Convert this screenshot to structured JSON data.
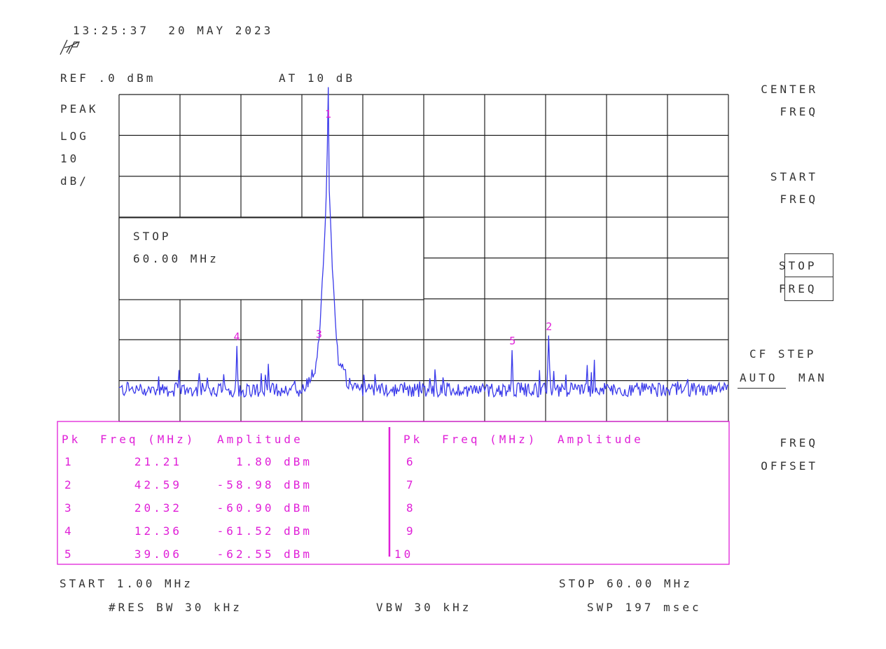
{
  "header": {
    "timestamp": "13:25:37  20 MAY 2023",
    "logo": "hp",
    "ref_level": "REF .0 dBm",
    "attenuation": "AT 10 dB"
  },
  "left_annotations": {
    "detector": "PEAK",
    "scale_type": "LOG",
    "scale_value": "10",
    "scale_unit": "dB/"
  },
  "active_function": {
    "label": "STOP",
    "value": "60.00 MHz"
  },
  "softkeys": {
    "center_freq": [
      "CENTER",
      "FREQ"
    ],
    "start_freq": [
      "START",
      "FREQ"
    ],
    "stop_freq": [
      "STOP",
      "FREQ"
    ],
    "cf_step": "CF STEP",
    "cf_step_auto": "AUTO",
    "cf_step_man": "MAN",
    "freq_offset": [
      "FREQ",
      "OFFSET"
    ]
  },
  "peak_table": {
    "headers": [
      "Pk",
      "Freq (MHz)",
      "Amplitude"
    ],
    "rows": [
      {
        "pk": "1",
        "freq": "21.21",
        "amp": "1.80 dBm"
      },
      {
        "pk": "2",
        "freq": "42.59",
        "amp": "-58.98 dBm"
      },
      {
        "pk": "3",
        "freq": "20.32",
        "amp": "-60.90 dBm"
      },
      {
        "pk": "4",
        "freq": "12.36",
        "amp": "-61.52 dBm"
      },
      {
        "pk": "5",
        "freq": "39.06",
        "amp": "-62.55 dBm"
      }
    ],
    "right_rows": [
      "6",
      "7",
      "8",
      "9",
      "10"
    ]
  },
  "footer": {
    "start": "START 1.00 MHz",
    "stop": "STOP 60.00 MHz",
    "rbw": "#RES BW 30 kHz",
    "vbw": "VBW 30 kHz",
    "sweep": "SWP 197 msec"
  },
  "colors": {
    "trace": "#3a3aea",
    "marker": "#e020d8",
    "graticule": "#222222",
    "text": "#333333"
  },
  "chart_data": {
    "type": "line",
    "xlim": [
      1.0,
      60.0
    ],
    "ylim": [
      -80,
      0
    ],
    "x_unit": "MHz",
    "y_unit": "dBm",
    "x_divisions": 10,
    "y_divisions": 8,
    "grid": true,
    "noise_floor": -73,
    "markers": [
      {
        "label": "1",
        "freq": 21.21,
        "amp": 1.8
      },
      {
        "label": "2",
        "freq": 42.59,
        "amp": -58.98
      },
      {
        "label": "3",
        "freq": 20.32,
        "amp": -60.9
      },
      {
        "label": "4",
        "freq": 12.36,
        "amp": -61.52
      },
      {
        "label": "5",
        "freq": 39.06,
        "amp": -62.55
      }
    ],
    "spurs": [
      [
        1.75,
        -70.4
      ],
      [
        8.8,
        -68.2
      ],
      [
        9.1,
        -70.6
      ],
      [
        14.8,
        -68.2
      ],
      [
        18.0,
        -70.0
      ],
      [
        28.6,
        -70.4
      ],
      [
        30.1,
        -70.2
      ],
      [
        31.7,
        -70.2
      ],
      [
        46.3,
        -66.2
      ],
      [
        47.0,
        -64.9
      ],
      [
        48.0,
        -70.6
      ],
      [
        55.1,
        -70.2
      ]
    ]
  }
}
